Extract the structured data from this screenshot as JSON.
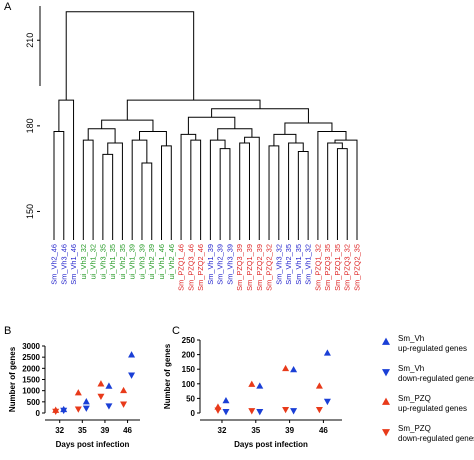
{
  "panel_a": {
    "letter": "A",
    "chart_data": {
      "type": "dendrogram",
      "y_ticks": [
        150,
        180,
        210
      ],
      "leaves": [
        {
          "label": "Sm_Vh2_46",
          "color": "#2222cc"
        },
        {
          "label": "Sm_Vh3_46",
          "color": "#2222cc"
        },
        {
          "label": "Sm_Vh1_46",
          "color": "#2222cc"
        },
        {
          "label": "ui_Vh3_32",
          "color": "#229922"
        },
        {
          "label": "ui_Vh1_32",
          "color": "#229922"
        },
        {
          "label": "ui_Vh3_35",
          "color": "#229922"
        },
        {
          "label": "ui_Vh1_35",
          "color": "#229922"
        },
        {
          "label": "ui_Vh2_35",
          "color": "#229922"
        },
        {
          "label": "ui_Vh1_39",
          "color": "#229922"
        },
        {
          "label": "ui_Vh3_39",
          "color": "#229922"
        },
        {
          "label": "ui_Vh2_39",
          "color": "#229922"
        },
        {
          "label": "ui_Vh1_46",
          "color": "#229922"
        },
        {
          "label": "ui_Vh2_46",
          "color": "#229922"
        },
        {
          "label": "Sm_PZQ1_46",
          "color": "#dd2222"
        },
        {
          "label": "Sm_PZQ3_46",
          "color": "#dd2222"
        },
        {
          "label": "Sm_PZQ2_46",
          "color": "#dd2222"
        },
        {
          "label": "Sm_Vh1_39",
          "color": "#2222cc"
        },
        {
          "label": "Sm_Vh2_39",
          "color": "#2222cc"
        },
        {
          "label": "Sm_Vh3_39",
          "color": "#2222cc"
        },
        {
          "label": "Sm_PZQ3_39",
          "color": "#dd2222"
        },
        {
          "label": "Sm_PZQ1_39",
          "color": "#dd2222"
        },
        {
          "label": "Sm_PZQ2_39",
          "color": "#dd2222"
        },
        {
          "label": "Sm_PZQ2_32",
          "color": "#dd2222"
        },
        {
          "label": "Sm_Vh3_32",
          "color": "#2222cc"
        },
        {
          "label": "Sm_Vh2_35",
          "color": "#2222cc"
        },
        {
          "label": "Sm_Vh1_35",
          "color": "#2222cc"
        },
        {
          "label": "Sm_Vh1_32",
          "color": "#2222cc"
        },
        {
          "label": "Sm_PZQ1_32",
          "color": "#dd2222"
        },
        {
          "label": "Sm_PZQ3_35",
          "color": "#dd2222"
        },
        {
          "label": "Sm_PZQ1_35",
          "color": "#dd2222"
        },
        {
          "label": "Sm_PZQ3_32",
          "color": "#dd2222"
        },
        {
          "label": "Sm_PZQ2_35",
          "color": "#dd2222"
        }
      ],
      "merges": [
        {
          "left": "L0",
          "right": "L1",
          "height": 178
        },
        {
          "left": "L5",
          "right": "L6",
          "height": 170
        },
        {
          "left": "L9",
          "right": "L10",
          "height": 167
        },
        {
          "left": "L11",
          "right": "L12",
          "height": 173
        },
        {
          "left": "L14",
          "right": "L15",
          "height": 175
        },
        {
          "left": "L17",
          "right": "L18",
          "height": 172
        },
        {
          "left": "L22",
          "right": "L23",
          "height": 173
        },
        {
          "left": "L25",
          "right": "L26",
          "height": 171
        },
        {
          "left": "L29",
          "right": "L30",
          "height": 172
        },
        {
          "left": "N0",
          "right": "L2",
          "height": 189
        },
        {
          "left": "L3",
          "right": "L4",
          "height": 175
        },
        {
          "left": "N1",
          "right": "L7",
          "height": 174
        },
        {
          "left": "N10",
          "right": "N11",
          "height": 179
        },
        {
          "left": "L8",
          "right": "N2",
          "height": 175
        },
        {
          "left": "N13",
          "right": "N3",
          "height": 178
        },
        {
          "left": "N12",
          "right": "N14",
          "height": 182
        },
        {
          "left": "L13",
          "right": "N4",
          "height": 177
        },
        {
          "left": "L16",
          "right": "N5",
          "height": 175
        },
        {
          "left": "L19",
          "right": "L20",
          "height": 174
        },
        {
          "left": "N18",
          "right": "L21",
          "height": 176
        },
        {
          "left": "N17",
          "right": "N19",
          "height": 179
        },
        {
          "left": "N16",
          "right": "N20",
          "height": 183
        },
        {
          "left": "L24",
          "right": "N7",
          "height": 174
        },
        {
          "left": "N6",
          "right": "N22",
          "height": 177
        },
        {
          "left": "L28",
          "right": "N8",
          "height": 174
        },
        {
          "left": "N24",
          "right": "L31",
          "height": 175
        },
        {
          "left": "L27",
          "right": "N25",
          "height": 178
        },
        {
          "left": "N23",
          "right": "N26",
          "height": 181
        },
        {
          "left": "N21",
          "right": "N27",
          "height": 186
        },
        {
          "left": "N15",
          "right": "N28",
          "height": 189
        },
        {
          "left": "N9",
          "right": "N29",
          "height": 220
        }
      ]
    }
  },
  "panel_b": {
    "letter": "B",
    "chart_data": {
      "type": "scatter",
      "xlabel": "Days post infection",
      "ylabel": "Number of genes",
      "categories": [
        "32",
        "35",
        "39",
        "46"
      ],
      "ylim": [
        0,
        3000
      ],
      "y_ticks": [
        0,
        500,
        1000,
        1500,
        2000,
        2500,
        3000
      ],
      "series": [
        {
          "name": "Sm_Vh up-regulated genes",
          "color": "#1a3fd6",
          "marker": "triangle-up",
          "values": [
            150,
            500,
            1200,
            2600
          ]
        },
        {
          "name": "Sm_Vh down-regulated genes",
          "color": "#1a3fd6",
          "marker": "triangle-down",
          "values": [
            120,
            220,
            320,
            1700
          ]
        },
        {
          "name": "Sm_PZQ up-regulated genes",
          "color": "#e83a1a",
          "marker": "triangle-up",
          "values": [
            120,
            900,
            1300,
            1000
          ]
        },
        {
          "name": "Sm_PZQ down-regulated genes",
          "color": "#e83a1a",
          "marker": "triangle-down",
          "values": [
            80,
            180,
            750,
            400
          ]
        }
      ]
    }
  },
  "panel_c": {
    "letter": "C",
    "chart_data": {
      "type": "scatter",
      "xlabel": "Days post infection",
      "ylabel": "Number of genes",
      "categories": [
        "32",
        "35",
        "39",
        "46"
      ],
      "ylim": [
        0,
        250
      ],
      "y_ticks": [
        0,
        50,
        100,
        150,
        200,
        250
      ],
      "series": [
        {
          "name": "Sm_Vh up-regulated genes",
          "color": "#1a3fd6",
          "marker": "triangle-up",
          "values": [
            42,
            92,
            148,
            205
          ]
        },
        {
          "name": "Sm_Vh down-regulated genes",
          "color": "#1a3fd6",
          "marker": "triangle-down",
          "values": [
            5,
            5,
            8,
            40
          ]
        },
        {
          "name": "Sm_PZQ up-regulated genes",
          "color": "#e83a1a",
          "marker": "triangle-up",
          "values": [
            20,
            98,
            152,
            92
          ]
        },
        {
          "name": "Sm_PZQ down-regulated genes",
          "color": "#e83a1a",
          "marker": "triangle-down",
          "values": [
            10,
            8,
            12,
            12
          ]
        }
      ]
    }
  },
  "legend": {
    "items": [
      {
        "name": "Sm_Vh",
        "sub": "up-regulated genes",
        "color": "#1a3fd6",
        "marker": "triangle-up"
      },
      {
        "name": "Sm_Vh",
        "sub": "down-regulated genes",
        "color": "#1a3fd6",
        "marker": "triangle-down"
      },
      {
        "name": "Sm_PZQ",
        "sub": "up-regulated genes",
        "color": "#e83a1a",
        "marker": "triangle-up"
      },
      {
        "name": "Sm_PZQ",
        "sub": "down-regulated genes",
        "color": "#e83a1a",
        "marker": "triangle-down"
      }
    ]
  }
}
